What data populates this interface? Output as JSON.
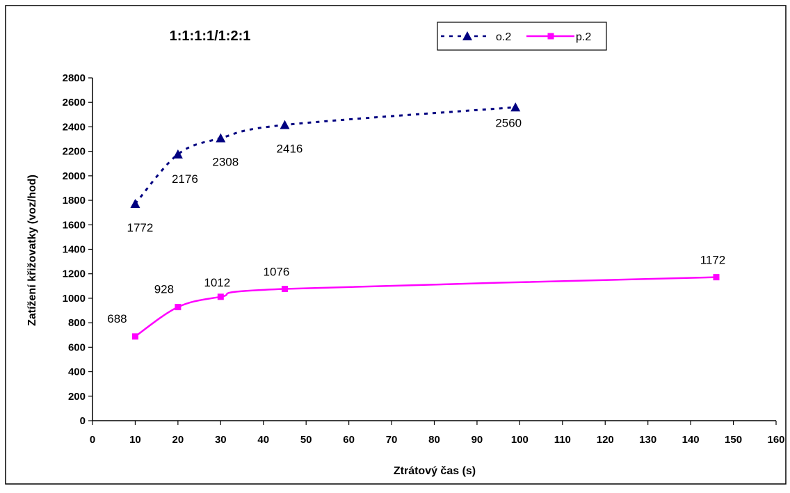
{
  "chart_data": {
    "type": "line",
    "title": "1:1:1:1/1:2:1",
    "xlabel": "Ztrátový čas (s)",
    "ylabel": "Zatížení křižovatky (voz/hod)",
    "xlim": [
      0,
      160
    ],
    "ylim": [
      0,
      2800
    ],
    "x_ticks": [
      "0",
      "10",
      "20",
      "30",
      "40",
      "50",
      "60",
      "70",
      "80",
      "90",
      "100",
      "110",
      "120",
      "130",
      "140",
      "150",
      "160"
    ],
    "y_ticks": [
      "0",
      "200",
      "400",
      "600",
      "800",
      "1000",
      "1200",
      "1400",
      "1600",
      "1800",
      "2000",
      "2200",
      "2400",
      "2600",
      "2800"
    ],
    "grid": false,
    "legend_position": "top-right",
    "series": [
      {
        "name": "o.2",
        "color": "#000080",
        "line_style": "dashed",
        "marker": "triangle",
        "x": [
          10,
          20,
          30,
          45,
          99
        ],
        "y": [
          1772,
          2176,
          2308,
          2416,
          2560
        ],
        "labels": [
          "1772",
          "2176",
          "2308",
          "2416",
          "2560"
        ]
      },
      {
        "name": "p.2",
        "color": "#ff00ff",
        "line_style": "solid",
        "marker": "square",
        "x": [
          10,
          20,
          30,
          45,
          146
        ],
        "y": [
          688,
          928,
          1012,
          1076,
          1172
        ],
        "labels": [
          "688",
          "928",
          "1012",
          "1076",
          "1172"
        ]
      }
    ]
  }
}
